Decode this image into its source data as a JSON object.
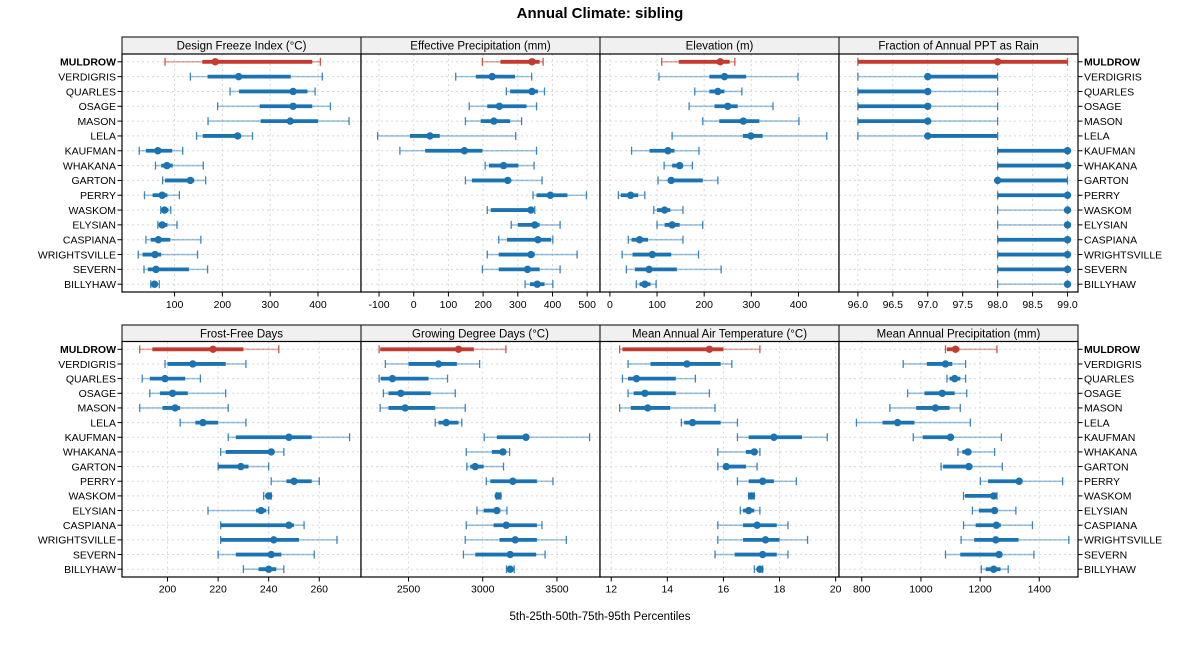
{
  "title": "Annual Climate: sibling",
  "caption": "5th-25th-50th-75th-95th Percentiles",
  "highlight_station": "MULDROW",
  "colors": {
    "highlight": "#C23B2E",
    "normal": "#1C73B1",
    "strip_bg": "#F0F0F0",
    "panel_border": "#000000",
    "grid": "#D8D8D8"
  },
  "stations": [
    "MULDROW",
    "VERDIGRIS",
    "QUARLES",
    "OSAGE",
    "MASON",
    "LELA",
    "KAUFMAN",
    "WHAKANA",
    "GARTON",
    "PERRY",
    "WASKOM",
    "ELYSIAN",
    "CASPIANA",
    "WRIGHTSVILLE",
    "SEVERN",
    "BILLYHAW"
  ],
  "chart_data": {
    "type": "dotplot-percentiles",
    "percentile_labels": [
      "5th",
      "25th",
      "50th",
      "75th",
      "95th"
    ],
    "legend_position": "none",
    "grid": "dashed",
    "panels": [
      {
        "title": "Design Freeze Index (°C)",
        "ticks": [
          100,
          200,
          300,
          400
        ],
        "tick_labels": [
          "100",
          "200",
          "300",
          "400"
        ],
        "xlim": [
          -10,
          490
        ],
        "values": [
          [
            80,
            158,
            185,
            388,
            405
          ],
          [
            133,
            169,
            234,
            343,
            409
          ],
          [
            216,
            235,
            348,
            378,
            394
          ],
          [
            190,
            278,
            348,
            388,
            426
          ],
          [
            170,
            280,
            342,
            400,
            465
          ],
          [
            146,
            159,
            232,
            239,
            263
          ],
          [
            26,
            40,
            65,
            95,
            117
          ],
          [
            60,
            72,
            84,
            96,
            160
          ],
          [
            75,
            80,
            133,
            141,
            165
          ],
          [
            37,
            54,
            74,
            85,
            110
          ],
          [
            71,
            74,
            79,
            87,
            92
          ],
          [
            65,
            68,
            74,
            85,
            105
          ],
          [
            40,
            50,
            66,
            91,
            155
          ],
          [
            24,
            33,
            59,
            72,
            148
          ],
          [
            36,
            44,
            61,
            130,
            169
          ],
          [
            50,
            53,
            58,
            63,
            68
          ]
        ]
      },
      {
        "title": "Effective Precipitation (mm)",
        "ticks": [
          -100,
          0,
          100,
          200,
          300,
          400,
          500
        ],
        "tick_labels": [
          "-100",
          "0",
          "100",
          "200",
          "300",
          "400",
          "500"
        ],
        "xlim": [
          -152,
          537
        ],
        "values": [
          [
            198,
            250,
            341,
            363,
            373
          ],
          [
            121,
            179,
            226,
            292,
            340
          ],
          [
            267,
            278,
            341,
            358,
            377
          ],
          [
            160,
            212,
            247,
            325,
            354
          ],
          [
            149,
            193,
            231,
            278,
            311
          ],
          [
            -104,
            -11,
            47,
            75,
            294
          ],
          [
            -40,
            33,
            146,
            198,
            354
          ],
          [
            206,
            217,
            259,
            302,
            347
          ],
          [
            149,
            168,
            271,
            278,
            370
          ],
          [
            344,
            354,
            394,
            443,
            498
          ],
          [
            212,
            222,
            338,
            346,
            349
          ],
          [
            281,
            300,
            349,
            363,
            422
          ],
          [
            245,
            269,
            358,
            396,
            401
          ],
          [
            212,
            245,
            338,
            349,
            471
          ],
          [
            198,
            245,
            328,
            363,
            422
          ],
          [
            321,
            335,
            356,
            377,
            401
          ]
        ]
      },
      {
        "title": "Elevation (m)",
        "ticks": [
          0,
          100,
          200,
          300,
          400
        ],
        "tick_labels": [
          "0",
          "100",
          "200",
          "300",
          "400"
        ],
        "xlim": [
          -21,
          486
        ],
        "values": [
          [
            110,
            146,
            234,
            254,
            265
          ],
          [
            104,
            211,
            243,
            289,
            399
          ],
          [
            180,
            211,
            229,
            243,
            280
          ],
          [
            168,
            222,
            250,
            271,
            346
          ],
          [
            197,
            232,
            283,
            317,
            401
          ],
          [
            132,
            282,
            299,
            324,
            460
          ],
          [
            46,
            84,
            123,
            137,
            189
          ],
          [
            115,
            132,
            148,
            155,
            175
          ],
          [
            102,
            123,
            130,
            197,
            229
          ],
          [
            18,
            23,
            44,
            60,
            74
          ],
          [
            93,
            100,
            116,
            128,
            155
          ],
          [
            100,
            116,
            132,
            148,
            197
          ],
          [
            39,
            46,
            63,
            81,
            155
          ],
          [
            26,
            48,
            90,
            130,
            188
          ],
          [
            35,
            53,
            83,
            142,
            236
          ],
          [
            56,
            63,
            74,
            86,
            98
          ]
        ]
      },
      {
        "title": "Fraction of Annual PPT as Rain",
        "ticks": [
          96,
          96.5,
          97,
          97.5,
          98,
          98.5,
          99
        ],
        "tick_labels": [
          "96.0",
          "96.5",
          "97.0",
          "97.5",
          "98.0",
          "98.5",
          "99.0"
        ],
        "xlim": [
          95.73,
          99.15
        ],
        "values": [
          [
            96,
            96,
            98,
            99,
            99
          ],
          [
            96,
            97,
            97,
            98,
            98
          ],
          [
            96,
            96,
            97,
            97,
            98
          ],
          [
            96,
            96,
            97,
            97,
            98
          ],
          [
            96,
            96,
            97,
            97,
            98
          ],
          [
            96,
            97,
            97,
            98,
            98
          ],
          [
            98,
            98,
            99,
            99,
            99
          ],
          [
            98,
            98,
            99,
            99,
            99
          ],
          [
            98,
            98,
            98,
            99,
            99
          ],
          [
            98,
            98,
            99,
            99,
            99
          ],
          [
            98,
            99,
            99,
            99,
            99
          ],
          [
            98,
            99,
            99,
            99,
            99
          ],
          [
            98,
            98,
            99,
            99,
            99
          ],
          [
            98,
            98,
            99,
            99,
            99
          ],
          [
            98,
            98,
            99,
            99,
            99
          ],
          [
            98,
            99,
            99,
            99,
            99
          ]
        ]
      },
      {
        "title": "Frost-Free Days",
        "ticks": [
          200,
          220,
          240,
          260
        ],
        "tick_labels": [
          "200",
          "220",
          "240",
          "260"
        ],
        "xlim": [
          182,
          276.5
        ],
        "values": [
          [
            189,
            194,
            218,
            230,
            244
          ],
          [
            199,
            200,
            210,
            223,
            231
          ],
          [
            190,
            193,
            199,
            207,
            213
          ],
          [
            193,
            197,
            202,
            208,
            223
          ],
          [
            189,
            198,
            203,
            205,
            224
          ],
          [
            205,
            211,
            214,
            220,
            231
          ],
          [
            224,
            227,
            248,
            257,
            272
          ],
          [
            221,
            223,
            241,
            242,
            246
          ],
          [
            220,
            220,
            229,
            232,
            240
          ],
          [
            241,
            247,
            250,
            257,
            260
          ],
          [
            238,
            239,
            240,
            240.5,
            241
          ],
          [
            216,
            235,
            237,
            239,
            240
          ],
          [
            221,
            221,
            248,
            250,
            254
          ],
          [
            221,
            221,
            242,
            252,
            267
          ],
          [
            220,
            227,
            241,
            245,
            258
          ],
          [
            230,
            236,
            240,
            243,
            246
          ]
        ]
      },
      {
        "title": "Growing Degree Days (°C)",
        "ticks": [
          2500,
          3000,
          3500
        ],
        "tick_labels": [
          "2500",
          "3000",
          "3500"
        ],
        "xlim": [
          2180,
          3790
        ],
        "values": [
          [
            2302,
            2310,
            2837,
            2940,
            3156
          ],
          [
            2344,
            2500,
            2702,
            2826,
            2979
          ],
          [
            2302,
            2313,
            2392,
            2635,
            2763
          ],
          [
            2331,
            2365,
            2448,
            2650,
            2815
          ],
          [
            2309,
            2365,
            2477,
            2680,
            2882
          ],
          [
            2680,
            2702,
            2754,
            2837,
            2859
          ],
          [
            3010,
            3095,
            3291,
            3300,
            3720
          ],
          [
            2889,
            3062,
            3136,
            3152,
            3181
          ],
          [
            2893,
            2916,
            2949,
            3006,
            3140
          ],
          [
            3024,
            3051,
            3203,
            3365,
            3473
          ],
          [
            3091,
            3096,
            3104,
            3115,
            3122
          ],
          [
            2961,
            3006,
            3095,
            3118,
            3163
          ],
          [
            2889,
            3073,
            3158,
            3365,
            3399
          ],
          [
            2882,
            3113,
            3219,
            3365,
            3563
          ],
          [
            2870,
            2950,
            3185,
            3360,
            3420
          ],
          [
            3160,
            3170,
            3185,
            3205,
            3212
          ]
        ]
      },
      {
        "title": "Mean Annual Air Temperature (°C)",
        "ticks": [
          12,
          14,
          16,
          18,
          20
        ],
        "tick_labels": [
          "12",
          "14",
          "16",
          "18",
          "20"
        ],
        "xlim": [
          11.6,
          20.12
        ],
        "values": [
          [
            12.3,
            12.4,
            15.5,
            16.0,
            17.3
          ],
          [
            12.6,
            13.4,
            14.7,
            15.9,
            16.3
          ],
          [
            12.4,
            12.6,
            12.9,
            14.3,
            15.0
          ],
          [
            12.6,
            12.8,
            13.2,
            14.3,
            15.5
          ],
          [
            12.3,
            12.7,
            13.3,
            14.1,
            15.7
          ],
          [
            14.5,
            14.6,
            14.9,
            15.9,
            16.5
          ],
          [
            16.5,
            16.9,
            17.8,
            18.8,
            19.7
          ],
          [
            15.8,
            16.8,
            17.1,
            17.2,
            17.3
          ],
          [
            15.8,
            16.0,
            16.1,
            16.8,
            17.2
          ],
          [
            16.5,
            16.9,
            17.4,
            17.8,
            18.6
          ],
          [
            16.9,
            16.95,
            17.0,
            17.05,
            17.1
          ],
          [
            16.6,
            16.7,
            16.9,
            17.1,
            17.3
          ],
          [
            15.8,
            16.7,
            17.2,
            17.9,
            18.3
          ],
          [
            15.8,
            16.7,
            17.5,
            18.0,
            19.0
          ],
          [
            15.7,
            16.4,
            17.4,
            17.9,
            18.3
          ],
          [
            17.1,
            17.2,
            17.3,
            17.35,
            17.4
          ]
        ]
      },
      {
        "title": "Mean Annual Precipitation (mm)",
        "ticks": [
          800,
          1000,
          1200,
          1400
        ],
        "tick_labels": [
          "800",
          "1000",
          "1200",
          "1400"
        ],
        "xlim": [
          723,
          1531
        ],
        "values": [
          [
            1083,
            1088,
            1117,
            1130,
            1257
          ],
          [
            940,
            1020,
            1083,
            1106,
            1151
          ],
          [
            1088,
            1097,
            1114,
            1133,
            1151
          ],
          [
            955,
            1012,
            1072,
            1114,
            1155
          ],
          [
            895,
            984,
            1049,
            1097,
            1133
          ],
          [
            782,
            870,
            921,
            978,
            1167
          ],
          [
            974,
            1006,
            1100,
            1108,
            1272
          ],
          [
            1125,
            1140,
            1159,
            1170,
            1249
          ],
          [
            1068,
            1075,
            1162,
            1174,
            1275
          ],
          [
            1201,
            1227,
            1332,
            1340,
            1479
          ],
          [
            1144,
            1149,
            1246,
            1252,
            1257
          ],
          [
            1174,
            1196,
            1249,
            1255,
            1321
          ],
          [
            1144,
            1185,
            1255,
            1270,
            1377
          ],
          [
            1136,
            1180,
            1253,
            1330,
            1500
          ],
          [
            1083,
            1133,
            1264,
            1275,
            1382
          ],
          [
            1204,
            1219,
            1246,
            1269,
            1295
          ]
        ]
      }
    ]
  }
}
